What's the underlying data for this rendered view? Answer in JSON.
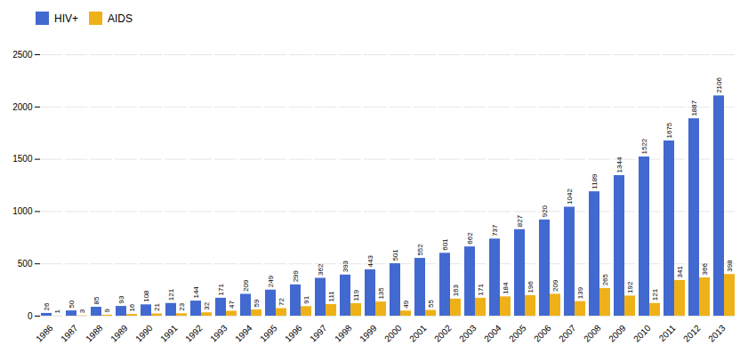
{
  "chart_data": {
    "type": "bar",
    "categories": [
      "1986",
      "1987",
      "1988",
      "1989",
      "1990",
      "1991",
      "1992",
      "1993",
      "1994",
      "1995",
      "1996",
      "1997",
      "1998",
      "1999",
      "2000",
      "2001",
      "2002",
      "2003",
      "2004",
      "2005",
      "2006",
      "2007",
      "2008",
      "2009",
      "2010",
      "2011",
      "2012",
      "2013"
    ],
    "series": [
      {
        "name": "HIV+",
        "values": [
          26,
          50,
          85,
          93,
          108,
          121,
          144,
          171,
          209,
          249,
          299,
          362,
          393,
          443,
          501,
          552,
          601,
          662,
          737,
          827,
          920,
          1042,
          1189,
          1344,
          1522,
          1675,
          1887,
          2106
        ]
      },
      {
        "name": "AIDS",
        "values": [
          1,
          3,
          9,
          16,
          21,
          23,
          32,
          47,
          59,
          72,
          91,
          111,
          119,
          135,
          49,
          55,
          163,
          171,
          184,
          196,
          209,
          139,
          265,
          192,
          121,
          341,
          366,
          398
        ]
      }
    ],
    "ylim": [
      0,
      2500
    ],
    "yticks": [
      0,
      500,
      1000,
      1500,
      2000,
      2500
    ],
    "grid": true,
    "legend": "upper left",
    "data_labels": true
  }
}
